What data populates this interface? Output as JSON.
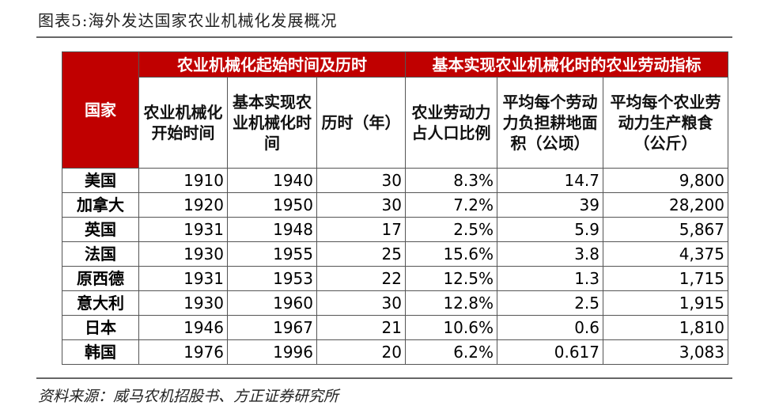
{
  "header": {
    "title": "图表5:海外发达国家农业机械化发展概况"
  },
  "table": {
    "corner": "国家",
    "groups": [
      "农业机械化起始时间及历时",
      "基本实现农业机械化时的农业劳动指标"
    ],
    "columns": [
      "农业机械化开始时间",
      "基本实现农业机械化时间",
      "历时（年）",
      "农业劳动力占人口比例",
      "平均每个劳动力负担耕地面积（公顷）",
      "平均每个农业劳动力生产粮食（公斤）"
    ],
    "rows": [
      [
        "美国",
        "1910",
        "1940",
        "30",
        "8.3%",
        "14.7",
        "9,800"
      ],
      [
        "加拿大",
        "1920",
        "1950",
        "30",
        "7.2%",
        "39",
        "28,200"
      ],
      [
        "英国",
        "1931",
        "1948",
        "17",
        "2.5%",
        "5.9",
        "5,867"
      ],
      [
        "法国",
        "1930",
        "1955",
        "25",
        "15.6%",
        "3.8",
        "4,375"
      ],
      [
        "原西德",
        "1931",
        "1953",
        "22",
        "12.5%",
        "1.3",
        "1,715"
      ],
      [
        "意大利",
        "1930",
        "1960",
        "30",
        "12.8%",
        "2.5",
        "1,915"
      ],
      [
        "日本",
        "1946",
        "1967",
        "21",
        "10.6%",
        "0.6",
        "1,810"
      ],
      [
        "韩国",
        "1976",
        "1996",
        "20",
        "6.2%",
        "0.617",
        "3,083"
      ]
    ]
  },
  "footer": {
    "source": "资料来源：威马农机招股书、方正证券研究所"
  }
}
